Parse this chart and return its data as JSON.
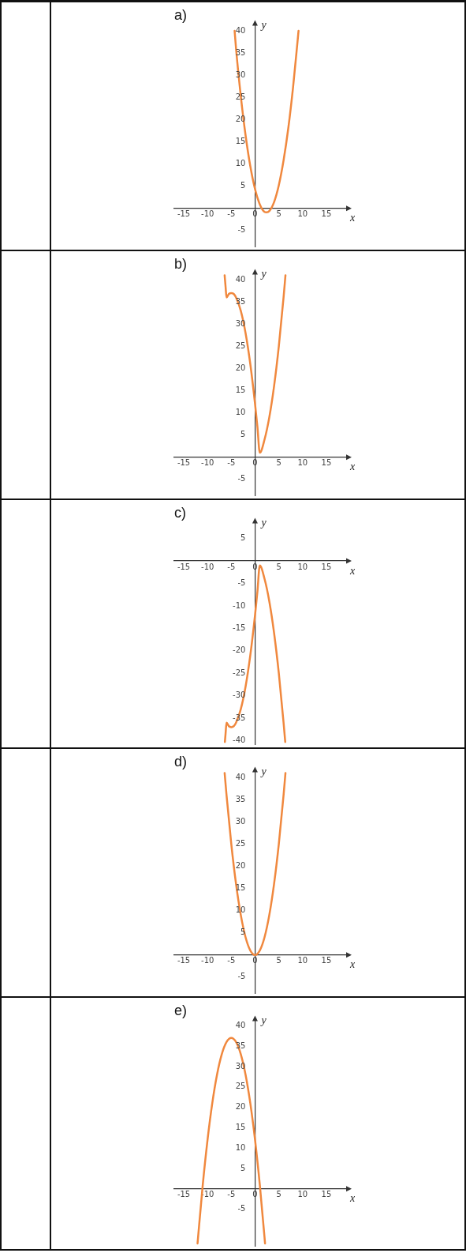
{
  "chart_data": [
    {
      "type": "line",
      "title": "a)",
      "xlabel": "x",
      "ylabel": "y",
      "xlim": [
        -17,
        19.5
      ],
      "ylim": [
        -8.6,
        41.5
      ],
      "xticks": [
        -15,
        -10,
        -5,
        0,
        5,
        10,
        15
      ],
      "yticks": [
        -5,
        5,
        10,
        15,
        20,
        25,
        30,
        35,
        40
      ],
      "series": [
        {
          "color": "#f0883e",
          "x": [
            -4.3,
            -4,
            -3,
            -2,
            -1,
            0,
            1,
            2,
            2.4,
            3,
            4,
            5,
            6,
            7,
            8,
            9,
            9.15
          ],
          "values": [
            40,
            36,
            25.3,
            16.5,
            9.5,
            4.3,
            0.9,
            -0.8,
            -0.9,
            -0.6,
            1.4,
            5.2,
            10.8,
            18.1,
            27.3,
            38.3,
            40
          ]
        }
      ]
    },
    {
      "type": "line",
      "title": "b)",
      "xlabel": "x",
      "ylabel": "y",
      "xlim": [
        -17,
        19.5
      ],
      "ylim": [
        -8.6,
        41.5
      ],
      "xticks": [
        -15,
        -10,
        -5,
        0,
        5,
        10,
        15
      ],
      "yticks": [
        -5,
        5,
        10,
        15,
        20,
        25,
        30,
        35,
        40
      ],
      "series": [
        {
          "color": "#f0883e",
          "x": [
            -6.4,
            -6.2,
            -6,
            -5.5,
            -5,
            -4.5,
            -4,
            -3,
            -2,
            -1,
            0,
            0.5,
            1,
            2,
            3,
            4,
            5,
            6,
            6.4
          ],
          "values": [
            41,
            38.4,
            36,
            36.8,
            37,
            36.8,
            36,
            33,
            28,
            21,
            12,
            6.8,
            1,
            4,
            9,
            16,
            25,
            36,
            41
          ]
        }
      ]
    },
    {
      "type": "line",
      "title": "c)",
      "xlabel": "x",
      "ylabel": "y",
      "xlim": [
        -17,
        19.5
      ],
      "ylim": [
        -40.8,
        8.7
      ],
      "xticks": [
        -15,
        -10,
        -5,
        0,
        5,
        10,
        15
      ],
      "yticks": [
        -40,
        -35,
        -30,
        -25,
        -20,
        -15,
        -10,
        -5,
        5
      ],
      "series": [
        {
          "color": "#f0883e",
          "x": [
            -6.35,
            -6.2,
            -6,
            -5.5,
            -5,
            -4.5,
            -4,
            -3,
            -2,
            -1,
            0,
            0.5,
            1,
            2,
            3,
            4,
            5,
            6,
            6.35
          ],
          "values": [
            -40.3,
            -38.4,
            -36,
            -36.8,
            -37,
            -36.8,
            -36,
            -33,
            -28,
            -21,
            -12,
            -6.8,
            -1,
            -4,
            -9,
            -16,
            -25,
            -36,
            -40.3
          ]
        }
      ]
    },
    {
      "type": "line",
      "title": "d)",
      "xlabel": "x",
      "ylabel": "y",
      "xlim": [
        -17,
        19.5
      ],
      "ylim": [
        -8.6,
        41.5
      ],
      "xticks": [
        -15,
        -10,
        -5,
        0,
        5,
        10,
        15
      ],
      "yticks": [
        -5,
        5,
        10,
        15,
        20,
        25,
        30,
        35,
        40
      ],
      "series": [
        {
          "color": "#f0883e",
          "x": [
            -6.4,
            -6,
            -5,
            -4,
            -3,
            -2,
            -1,
            0,
            1,
            2,
            3,
            4,
            5,
            6,
            6.4
          ],
          "values": [
            41,
            36,
            25,
            16,
            9,
            4,
            1,
            0,
            1,
            4,
            9,
            16,
            25,
            36,
            41
          ]
        }
      ]
    },
    {
      "type": "line",
      "title": "e)",
      "xlabel": "x",
      "ylabel": "y",
      "xlim": [
        -17,
        19.5
      ],
      "ylim": [
        -14,
        41.5
      ],
      "xticks": [
        -15,
        -10,
        -5,
        0,
        5,
        10,
        15
      ],
      "yticks": [
        -5,
        5,
        10,
        15,
        20,
        25,
        30,
        35,
        40
      ],
      "series": [
        {
          "color": "#f0883e",
          "x": [
            -12.1,
            -11,
            -10,
            -9,
            -8,
            -7,
            -6,
            -5,
            -4,
            -3,
            -2,
            -1,
            0,
            1,
            2,
            2.1
          ],
          "values": [
            -13.4,
            1,
            12,
            21,
            28,
            33,
            36,
            37,
            36,
            33,
            28,
            21,
            12,
            1,
            -12,
            -13.4
          ]
        }
      ]
    }
  ]
}
